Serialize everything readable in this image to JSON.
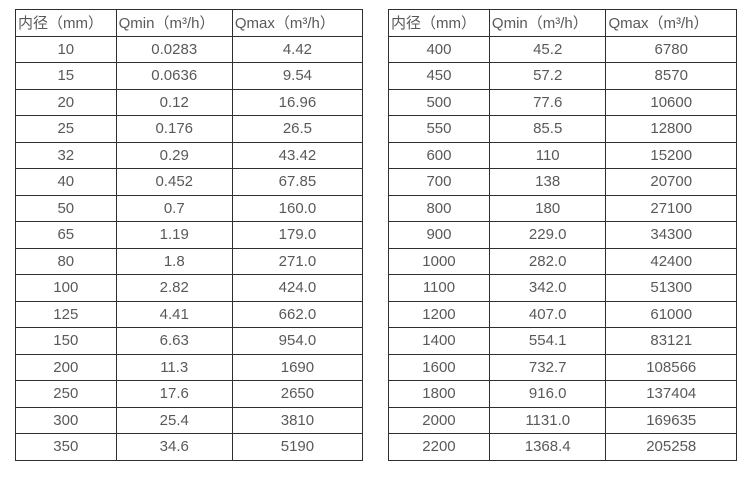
{
  "colors": {
    "background": "#ffffff",
    "border": "#2f2f2f",
    "text": "#58595b"
  },
  "tables": [
    {
      "name": "flow-capacity-table-small-diameters",
      "headers": [
        "内径（mm）",
        "Qmin（m³/h）",
        "Qmax（m³/h）"
      ],
      "rows": [
        [
          "10",
          "0.0283",
          "4.42"
        ],
        [
          "15",
          "0.0636",
          "9.54"
        ],
        [
          "20",
          "0.12",
          "16.96"
        ],
        [
          "25",
          "0.176",
          "26.5"
        ],
        [
          "32",
          "0.29",
          "43.42"
        ],
        [
          "40",
          "0.452",
          "67.85"
        ],
        [
          "50",
          "0.7",
          "160.0"
        ],
        [
          "65",
          "1.19",
          "179.0"
        ],
        [
          "80",
          "1.8",
          "271.0"
        ],
        [
          "100",
          "2.82",
          "424.0"
        ],
        [
          "125",
          "4.41",
          "662.0"
        ],
        [
          "150",
          "6.63",
          "954.0"
        ],
        [
          "200",
          "11.3",
          "1690"
        ],
        [
          "250",
          "17.6",
          "2650"
        ],
        [
          "300",
          "25.4",
          "3810"
        ],
        [
          "350",
          "34.6",
          "5190"
        ]
      ]
    },
    {
      "name": "flow-capacity-table-large-diameters",
      "headers": [
        "内径（mm）",
        "Qmin（m³/h）",
        "Qmax（m³/h）"
      ],
      "rows": [
        [
          "400",
          "45.2",
          "6780"
        ],
        [
          "450",
          "57.2",
          "8570"
        ],
        [
          "500",
          "77.6",
          "10600"
        ],
        [
          "550",
          "85.5",
          "12800"
        ],
        [
          "600",
          "110",
          "15200"
        ],
        [
          "700",
          "138",
          "20700"
        ],
        [
          "800",
          "180",
          "27100"
        ],
        [
          "900",
          "229.0",
          "34300"
        ],
        [
          "1000",
          "282.0",
          "42400"
        ],
        [
          "1100",
          "342.0",
          "51300"
        ],
        [
          "1200",
          "407.0",
          "61000"
        ],
        [
          "1400",
          "554.1",
          "83121"
        ],
        [
          "1600",
          "732.7",
          "108566"
        ],
        [
          "1800",
          "916.0",
          "137404"
        ],
        [
          "2000",
          "1131.0",
          "169635"
        ],
        [
          "2200",
          "1368.4",
          "205258"
        ]
      ]
    }
  ]
}
